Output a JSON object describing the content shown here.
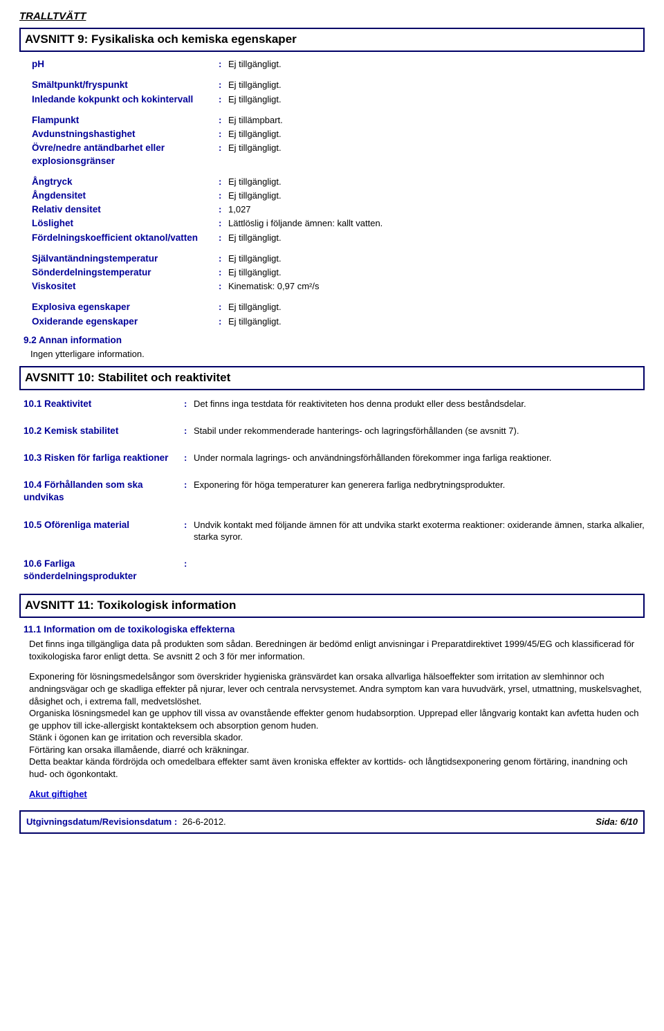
{
  "document": {
    "title": "TRALLTVÄTT"
  },
  "section9": {
    "heading": "AVSNITT 9: Fysikaliska och kemiska egenskaper",
    "rows": [
      {
        "label": "pH",
        "value": "Ej tillgängligt."
      },
      {
        "label": "Smältpunkt/fryspunkt",
        "value": "Ej tillgängligt."
      },
      {
        "label": "Inledande kokpunkt och kokintervall",
        "value": "Ej tillgängligt."
      },
      {
        "label": "Flampunkt",
        "value": "Ej tillämpbart."
      },
      {
        "label": "Avdunstningshastighet",
        "value": "Ej tillgängligt."
      },
      {
        "label": "Övre/nedre antändbarhet eller explosionsgränser",
        "value": "Ej tillgängligt."
      },
      {
        "label": "Ångtryck",
        "value": "Ej tillgängligt."
      },
      {
        "label": "Ångdensitet",
        "value": "Ej tillgängligt."
      },
      {
        "label": "Relativ densitet",
        "value": "1,027"
      },
      {
        "label": "Löslighet",
        "value": "Lättlöslig i följande ämnen: kallt vatten."
      },
      {
        "label": "Fördelningskoefficient oktanol/vatten",
        "value": "Ej tillgängligt."
      },
      {
        "label": "Självantändningstemperatur",
        "value": "Ej tillgängligt."
      },
      {
        "label": "Sönderdelningstemperatur",
        "value": "Ej tillgängligt."
      },
      {
        "label": "Viskositet",
        "value": "Kinematisk: 0,97 cm²/s"
      },
      {
        "label": "Explosiva egenskaper",
        "value": "Ej tillgängligt."
      },
      {
        "label": "Oxiderande egenskaper",
        "value": "Ej tillgängligt."
      }
    ],
    "sub92": "9.2 Annan information",
    "sub92_text": "Ingen ytterligare information."
  },
  "section10": {
    "heading": "AVSNITT 10: Stabilitet och reaktivitet",
    "rows": [
      {
        "label": "10.1 Reaktivitet",
        "value": "Det finns inga testdata för reaktiviteten hos denna produkt eller dess beståndsdelar."
      },
      {
        "label": "10.2 Kemisk stabilitet",
        "value": "Stabil under rekommenderade hanterings- och lagringsförhållanden (se avsnitt 7)."
      },
      {
        "label": "10.3 Risken för farliga reaktioner",
        "value": "Under normala lagrings- och användningsförhållanden förekommer inga farliga reaktioner."
      },
      {
        "label": "10.4 Förhållanden som ska undvikas",
        "value": "Exponering för höga temperaturer kan generera farliga nedbrytningsprodukter."
      },
      {
        "label": "10.5 Oförenliga material",
        "value": "Undvik kontakt med följande ämnen för att undvika starkt exoterma reaktioner: oxiderande ämnen, starka alkalier, starka syror."
      },
      {
        "label": "10.6 Farliga sönderdelningsprodukter",
        "value": ""
      }
    ]
  },
  "section11": {
    "heading": "AVSNITT 11: Toxikologisk information",
    "sub111": "11.1 Information om de toxikologiska effekterna",
    "para1": "Det finns inga tillgängliga data på produkten som sådan. Beredningen är bedömd enligt anvisningar i Preparatdirektivet 1999/45/EG och klassificerad för toxikologiska faror enligt detta.  Se avsnitt 2 och 3 för mer information.",
    "para2": "Exponering för lösningsmedelsångor som överskrider hygieniska gränsvärdet kan orsaka allvarliga hälsoeffekter som irritation av slemhinnor och andningsvägar och ge skadliga effekter på njurar, lever och centrala nervsystemet. Andra symptom kan vara huvudvärk, yrsel, utmattning, muskelsvaghet, dåsighet och, i extrema fall, medvetslöshet.\nOrganiska lösningsmedel kan ge upphov till vissa av ovanstående effekter genom hudabsorption. Upprepad eller långvarig kontakt kan avfetta huden och ge upphov till icke-allergiskt kontakteksem och absorption genom huden.\nStänk i ögonen kan ge irritation och reversibla skador.\nFörtäring kan orsaka illamående, diarré och kräkningar.\nDetta beaktar kända fördröjda och omedelbara effekter samt även kroniska effekter av korttids- och långtidsexponering genom förtäring, inandning och hud- och ögonkontakt.",
    "link": "Akut giftighet"
  },
  "footer": {
    "label": "Utgivningsdatum/Revisionsdatum",
    "date": "26-6-2012.",
    "page": "Sida: 6/10"
  }
}
